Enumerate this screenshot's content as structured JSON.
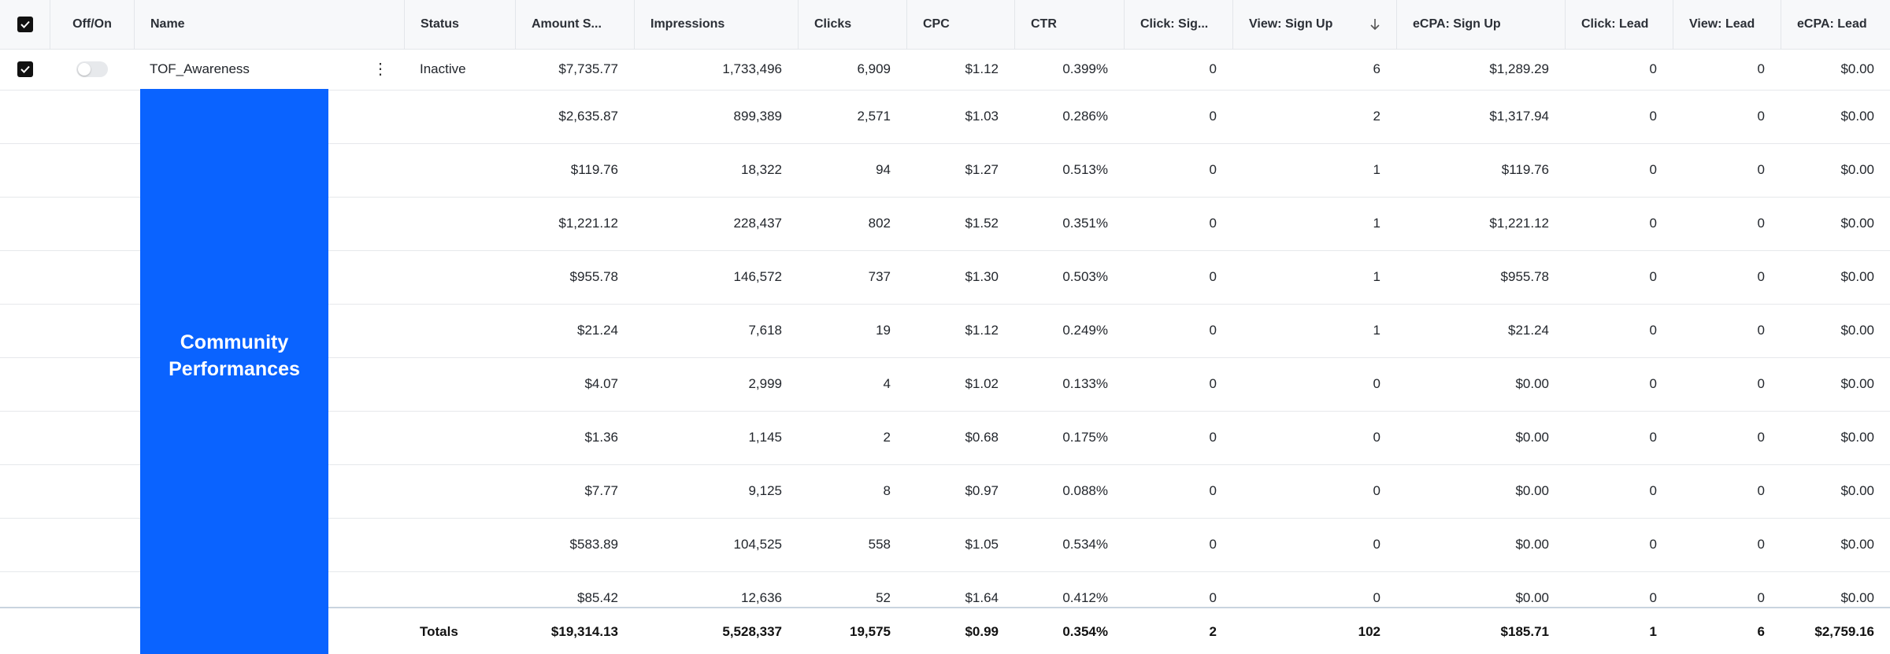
{
  "header": {
    "off_on": "Off/On",
    "columns": [
      "Name",
      "Status",
      "Amount S...",
      "Impressions",
      "Clicks",
      "CPC",
      "CTR",
      "Click: Sig...",
      "View: Sign Up",
      "eCPA: Sign Up",
      "Click: Lead",
      "View: Lead",
      "eCPA: Lead"
    ],
    "sorted_column": "View: Sign Up",
    "sort_direction": "descending"
  },
  "first_row": {
    "name": "TOF_Awareness",
    "status": "Inactive",
    "toggle_on": false,
    "selected": true,
    "values": [
      "$7,735.77",
      "1,733,496",
      "6,909",
      "$1.12",
      "0.399%",
      "0",
      "6",
      "$1,289.29",
      "0",
      "0",
      "$0.00"
    ]
  },
  "rows": [
    [
      "$2,635.87",
      "899,389",
      "2,571",
      "$1.03",
      "0.286%",
      "0",
      "2",
      "$1,317.94",
      "0",
      "0",
      "$0.00"
    ],
    [
      "$119.76",
      "18,322",
      "94",
      "$1.27",
      "0.513%",
      "0",
      "1",
      "$119.76",
      "0",
      "0",
      "$0.00"
    ],
    [
      "$1,221.12",
      "228,437",
      "802",
      "$1.52",
      "0.351%",
      "0",
      "1",
      "$1,221.12",
      "0",
      "0",
      "$0.00"
    ],
    [
      "$955.78",
      "146,572",
      "737",
      "$1.30",
      "0.503%",
      "0",
      "1",
      "$955.78",
      "0",
      "0",
      "$0.00"
    ],
    [
      "$21.24",
      "7,618",
      "19",
      "$1.12",
      "0.249%",
      "0",
      "1",
      "$21.24",
      "0",
      "0",
      "$0.00"
    ],
    [
      "$4.07",
      "2,999",
      "4",
      "$1.02",
      "0.133%",
      "0",
      "0",
      "$0.00",
      "0",
      "0",
      "$0.00"
    ],
    [
      "$1.36",
      "1,145",
      "2",
      "$0.68",
      "0.175%",
      "0",
      "0",
      "$0.00",
      "0",
      "0",
      "$0.00"
    ],
    [
      "$7.77",
      "9,125",
      "8",
      "$0.97",
      "0.088%",
      "0",
      "0",
      "$0.00",
      "0",
      "0",
      "$0.00"
    ],
    [
      "$583.89",
      "104,525",
      "558",
      "$1.05",
      "0.534%",
      "0",
      "0",
      "$0.00",
      "0",
      "0",
      "$0.00"
    ],
    [
      "$85.42",
      "12,636",
      "52",
      "$1.64",
      "0.412%",
      "0",
      "0",
      "$0.00",
      "0",
      "0",
      "$0.00"
    ]
  ],
  "totals": {
    "label": "Totals",
    "values": [
      "$19,314.13",
      "5,528,337",
      "19,575",
      "$0.99",
      "0.354%",
      "2",
      "102",
      "$185.71",
      "1",
      "6",
      "$2,759.16"
    ]
  },
  "overlay": {
    "text": "Community Performances"
  },
  "colors": {
    "overlay_bg": "#0a63ff",
    "header_bg": "#f7f8fa"
  }
}
